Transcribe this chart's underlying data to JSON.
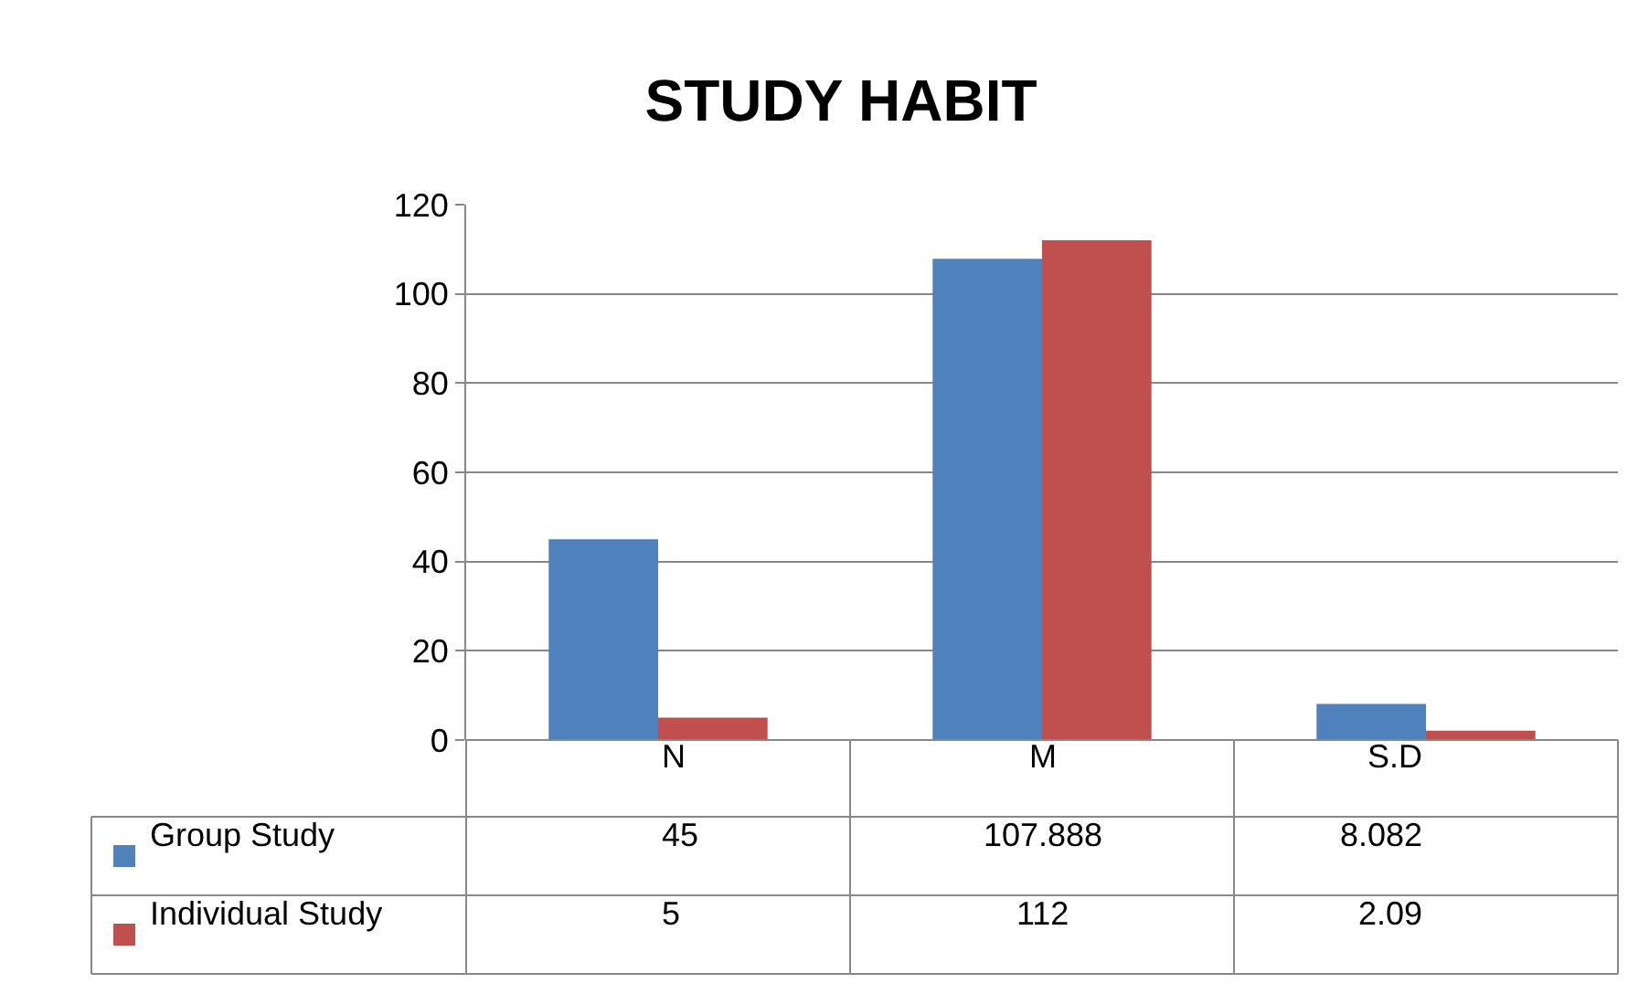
{
  "chart_data": {
    "type": "bar",
    "title": "STUDY HABIT",
    "categories": [
      "N",
      "M",
      "S.D"
    ],
    "series": [
      {
        "name": "Group Study",
        "color": "#4f81bd",
        "values": [
          45,
          107.888,
          8.082
        ]
      },
      {
        "name": "Individual Study",
        "color": "#c0504d",
        "values": [
          5,
          112,
          2.09
        ]
      }
    ],
    "ylim": [
      0,
      120
    ],
    "yticks": [
      0,
      20,
      40,
      60,
      80,
      100,
      120
    ],
    "grid": "y",
    "legend": "bottom",
    "data_labels": true
  }
}
